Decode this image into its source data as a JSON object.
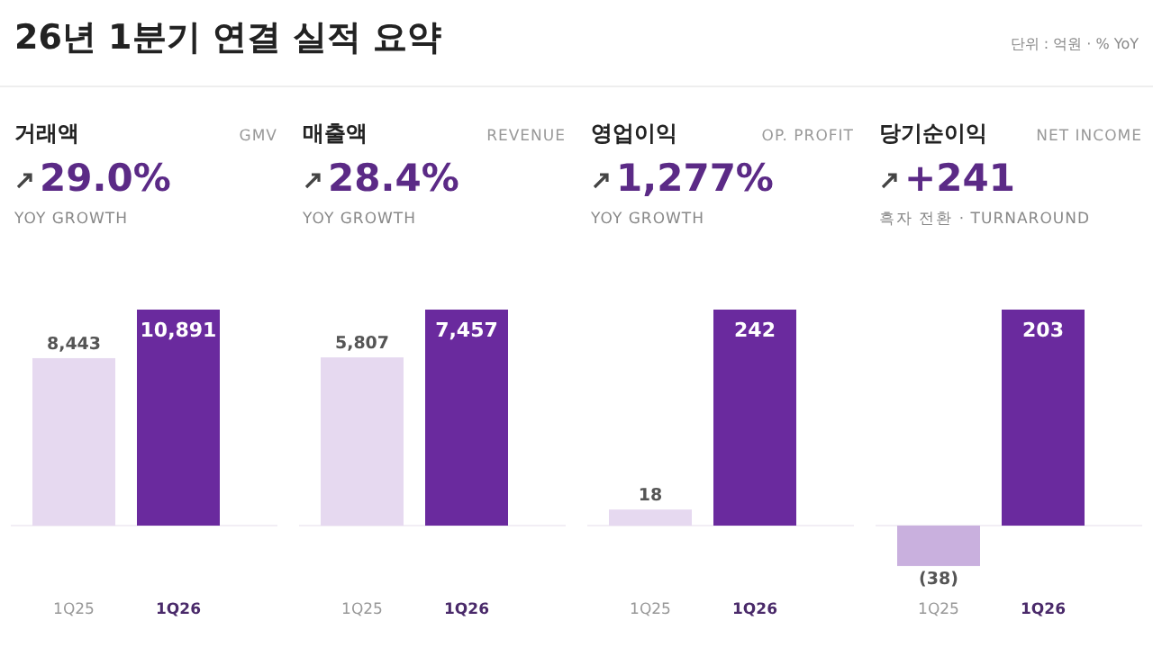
{
  "chart_data": [
    {
      "type": "other",
      "title": "26년 1분기 연결 실적 요약",
      "annotations": [
        "단위 : 억원 · % YoY"
      ]
    },
    {
      "type": "bar",
      "title": "거래액",
      "subtitle": "GMV",
      "annotations": [
        "29.0%",
        "YOY GROWTH"
      ],
      "categories": [
        "1Q25",
        "1Q26"
      ],
      "values": [
        8443,
        10891
      ],
      "value_labels": [
        "8,443",
        "10,891"
      ],
      "colors": [
        "#e6d9f0",
        "#6a2a9e"
      ]
    },
    {
      "type": "bar",
      "title": "매출액",
      "subtitle": "REVENUE",
      "annotations": [
        "28.4%",
        "YOY GROWTH"
      ],
      "categories": [
        "1Q25",
        "1Q26"
      ],
      "values": [
        5807,
        7457
      ],
      "value_labels": [
        "5,807",
        "7,457"
      ],
      "colors": [
        "#e6d9f0",
        "#6a2a9e"
      ]
    },
    {
      "type": "bar",
      "title": "영업이익",
      "subtitle": "OP. PROFIT",
      "annotations": [
        "1,277%",
        "YOY GROWTH"
      ],
      "categories": [
        "1Q25",
        "1Q26"
      ],
      "values": [
        18,
        242
      ],
      "value_labels": [
        "18",
        "242"
      ],
      "colors": [
        "#e6d9f0",
        "#6a2a9e"
      ]
    },
    {
      "type": "bar",
      "title": "당기순이익",
      "subtitle": "NET INCOME",
      "annotations": [
        "+241",
        "흑자 전환 · TURNAROUND"
      ],
      "categories": [
        "1Q25",
        "1Q26"
      ],
      "values": [
        -38,
        203
      ],
      "value_labels": [
        "(38)",
        "203"
      ],
      "colors": [
        "#c9b0de",
        "#6a2a9e"
      ]
    }
  ]
}
